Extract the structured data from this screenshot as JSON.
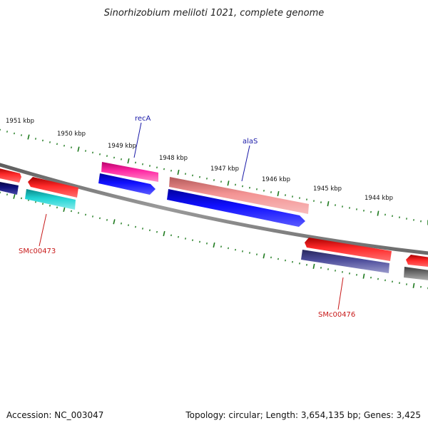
{
  "title": "Sinorhizobium meliloti 1021, complete genome",
  "footer": {
    "accession": "Accession: NC_003047",
    "topology": "Topology: circular; Length: 3,654,135 bp; Genes: 3,425"
  },
  "kbp_labels": [
    "1951 kbp",
    "1950 kbp",
    "1949 kbp",
    "1948 kbp",
    "1947 kbp",
    "1946 kbp",
    "1945 kbp",
    "1944 kbp"
  ],
  "gene_labels": [
    {
      "name": "recA",
      "color": "blue"
    },
    {
      "name": "alaS",
      "color": "blue"
    },
    {
      "name": "SMc00473",
      "color": "red"
    },
    {
      "name": "SMc00476",
      "color": "red"
    }
  ],
  "colors": {
    "backbone": "#808080",
    "ticks": "#1e7a1e",
    "red_gene": "#ff0000",
    "magenta_gene": "#ff1fa0",
    "pink_gene": "#f08a8a",
    "blue_gene": "#0000ff",
    "navy_gene": "#0b0b6e",
    "cyan_gene": "#18c8c8",
    "slate_gene": "#4a4a98",
    "gray_gene": "#6e6e6e"
  }
}
